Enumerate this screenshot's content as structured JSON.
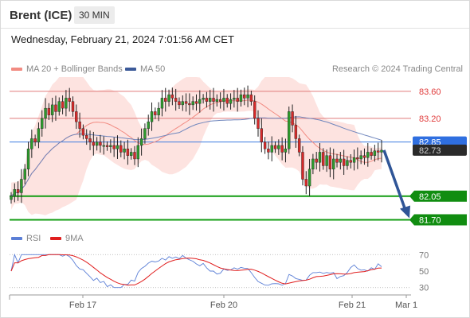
{
  "header": {
    "instrument": "Brent (ICE)",
    "timeframe": "30 MIN"
  },
  "timestamp": "Wednesday, February 21, 2024 7:01:56 AM CET",
  "legend_main": [
    {
      "label": "MA 20 + Bollinger Bands",
      "color": "#f28b82"
    },
    {
      "label": "MA 50",
      "color": "#3c5a99"
    }
  ],
  "copyright": "Research © 2024 Trading Central",
  "legend_rsi": [
    {
      "label": "RSI",
      "color": "#5b7fd6"
    },
    {
      "label": "9MA",
      "color": "#e01e1e"
    }
  ],
  "chart_data": {
    "type": "line",
    "subtype": "candlestick",
    "ylim": [
      81.53,
      83.81
    ],
    "x_ticks": [
      "Feb 17",
      "Feb 20",
      "Feb 21",
      "Mar 1"
    ],
    "current_price": 82.85,
    "last_close": 82.73,
    "price_labels": [
      {
        "value": 83.6,
        "kind": "resistance"
      },
      {
        "value": 83.2,
        "kind": "resistance"
      },
      {
        "value": 82.85,
        "kind": "pivot"
      },
      {
        "value": 82.73,
        "kind": "last"
      },
      {
        "value": 82.05,
        "kind": "support"
      },
      {
        "value": 81.7,
        "kind": "support"
      }
    ],
    "forecast_arrow": {
      "from": 82.73,
      "to": 81.7,
      "direction": "down"
    },
    "closes": [
      82.05,
      82.15,
      82.1,
      82.3,
      82.45,
      82.75,
      82.9,
      82.85,
      83.05,
      83.2,
      83.35,
      83.25,
      83.4,
      83.3,
      83.45,
      83.35,
      83.5,
      83.45,
      83.3,
      83.15,
      83.05,
      82.95,
      82.9,
      82.85,
      82.8,
      82.85,
      82.8,
      82.8,
      82.78,
      82.8,
      82.75,
      82.8,
      82.7,
      82.75,
      82.65,
      82.7,
      82.6,
      82.8,
      82.9,
      83.05,
      83.15,
      83.3,
      83.25,
      83.35,
      83.5,
      83.45,
      83.55,
      83.5,
      83.45,
      83.4,
      83.45,
      83.42,
      83.4,
      83.45,
      83.42,
      83.48,
      83.5,
      83.45,
      83.5,
      83.45,
      83.48,
      83.45,
      83.5,
      83.42,
      83.48,
      83.5,
      83.45,
      83.55,
      83.5,
      83.55,
      83.45,
      83.2,
      83.05,
      82.85,
      82.75,
      82.7,
      82.8,
      82.75,
      82.8,
      82.7,
      82.75,
      83.3,
      83.1,
      82.9,
      82.7,
      82.3,
      82.2,
      82.45,
      82.6,
      82.55,
      82.7,
      82.5,
      82.65,
      82.45,
      82.6,
      82.55,
      82.6,
      82.5,
      82.58,
      82.55,
      82.62,
      82.6,
      82.65,
      82.62,
      82.7,
      82.65,
      82.72,
      82.7,
      82.73
    ],
    "rsi": {
      "ylim": [
        23,
        77
      ],
      "ticks": [
        70,
        50,
        30
      ],
      "levels": [
        70,
        30
      ]
    }
  }
}
